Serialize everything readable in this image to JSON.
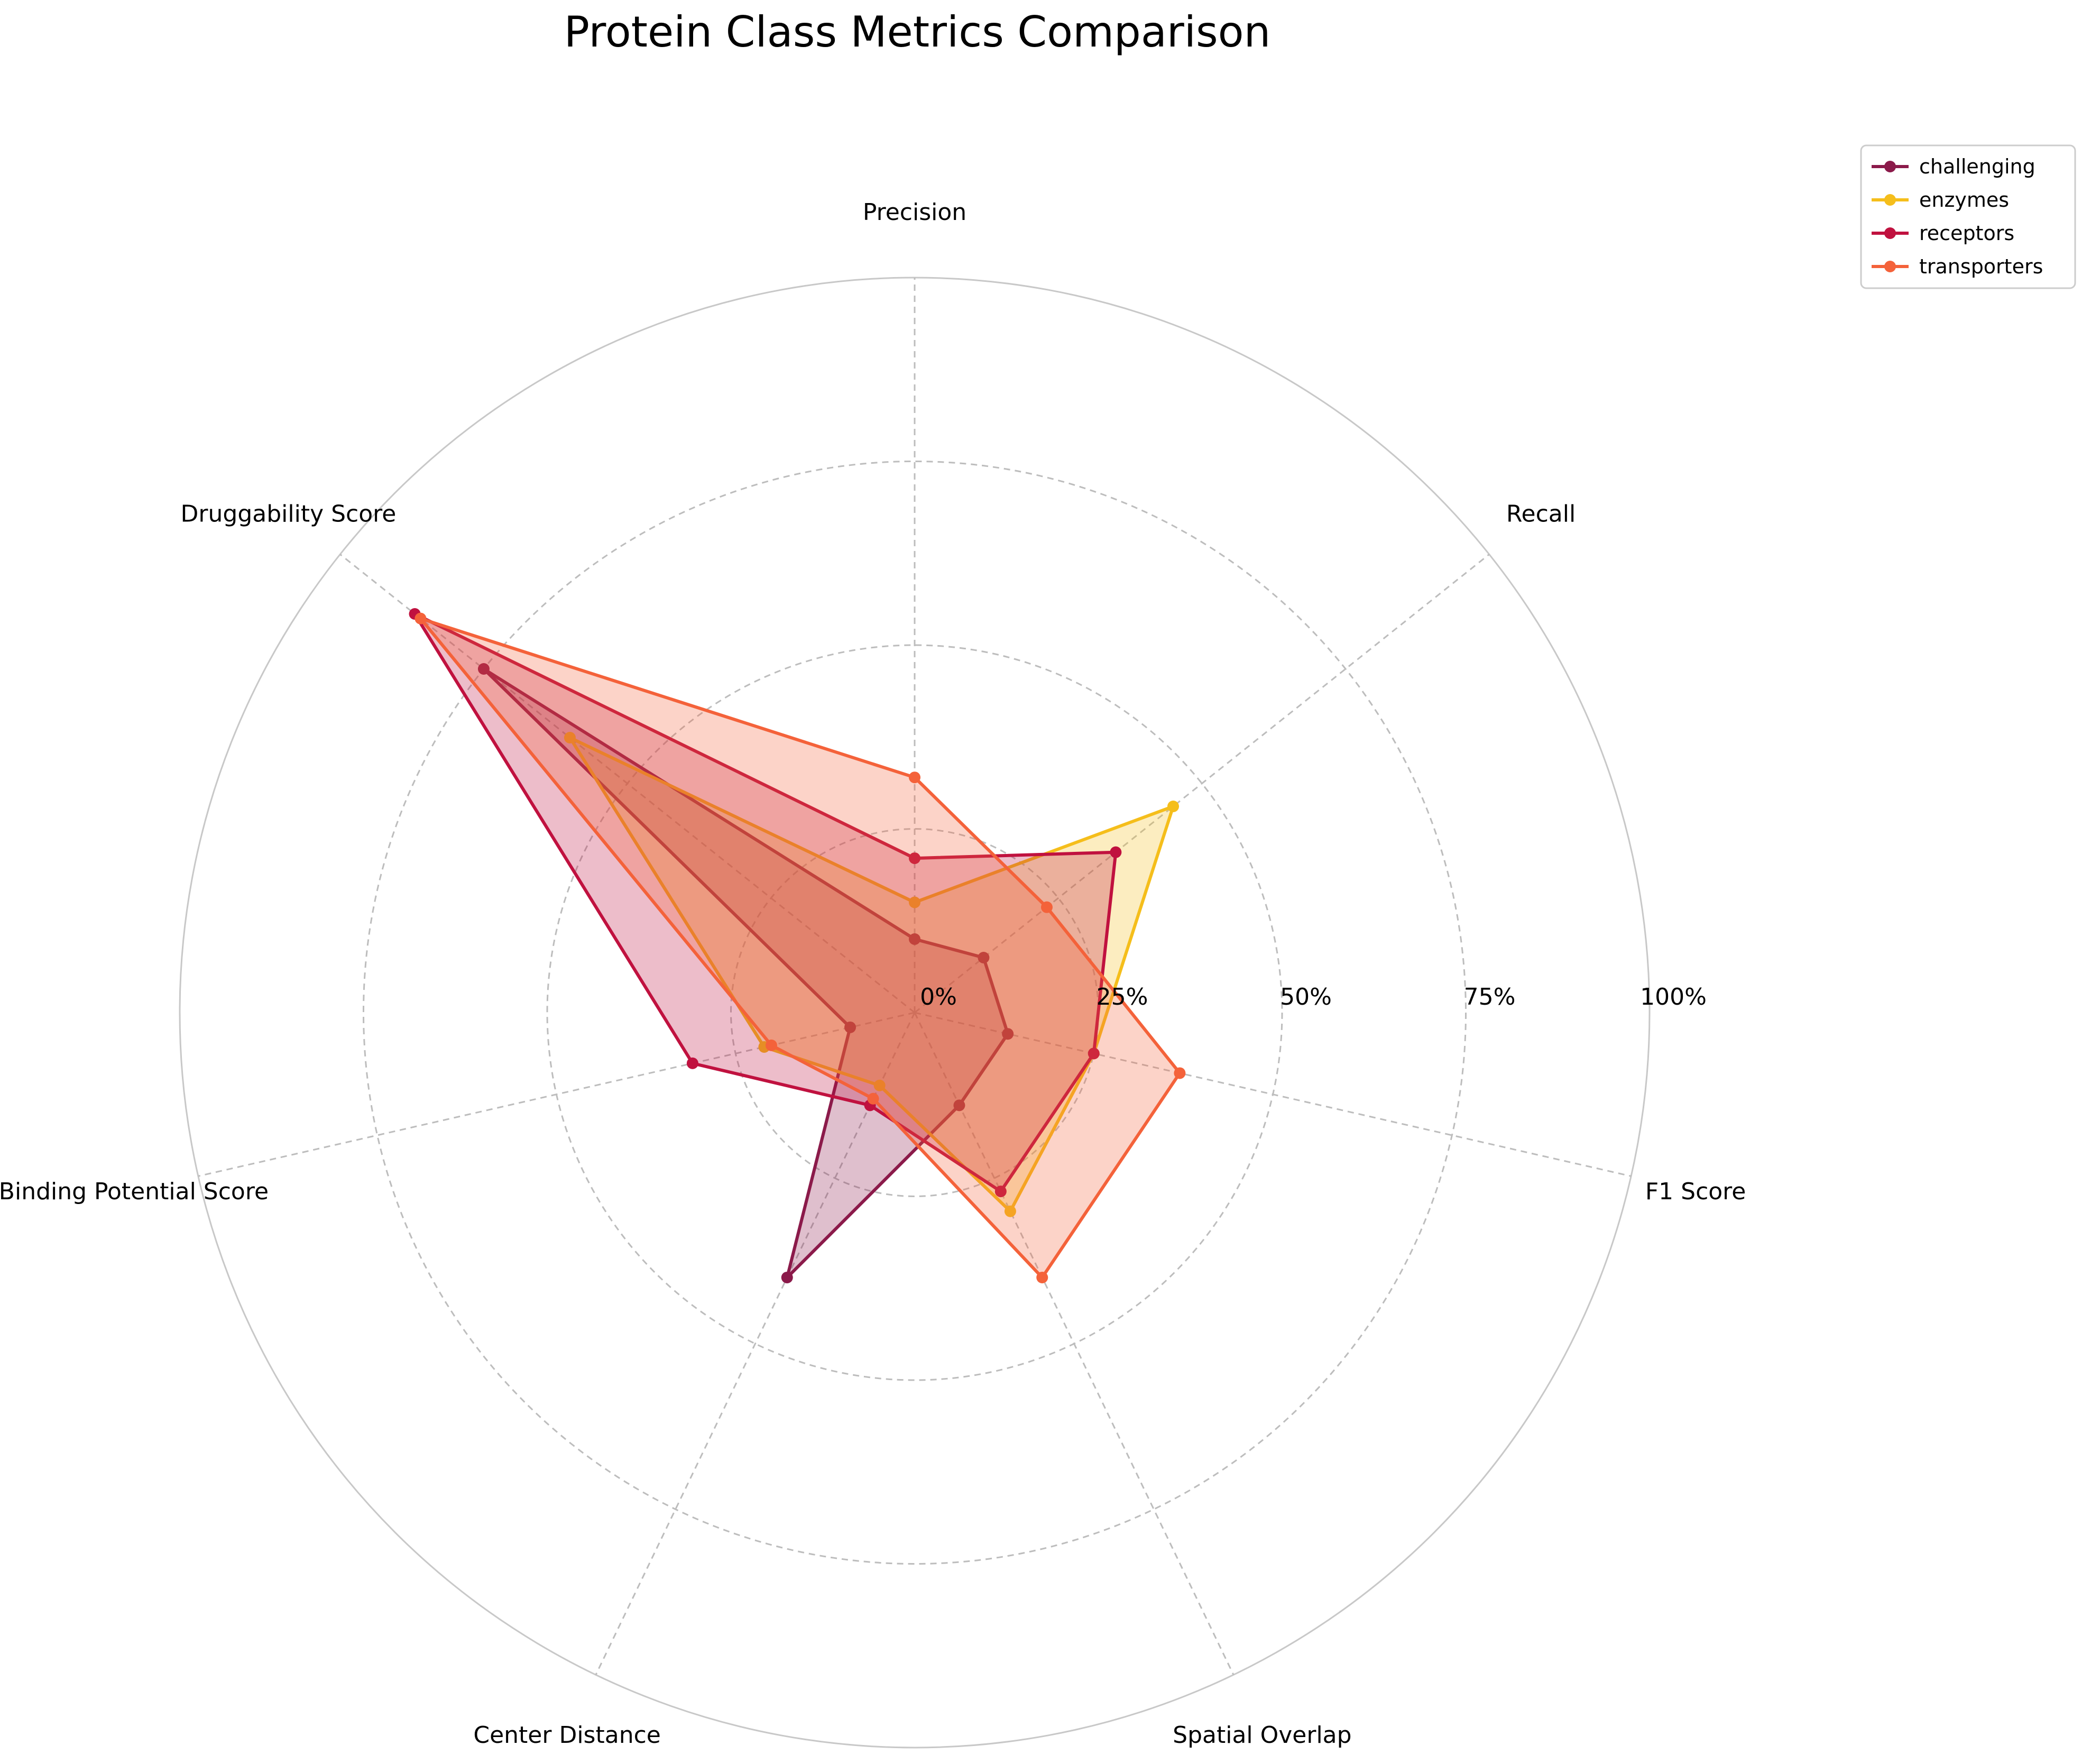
{
  "chart_data": {
    "type": "radar",
    "title": "Protein Class Metrics Comparison",
    "axes": [
      "Precision",
      "Recall",
      "F1 Score",
      "Spatial Overlap",
      "Center Distance",
      "Binding Potential Score",
      "Druggability Score"
    ],
    "radial_ticks": [
      "0%",
      "25%",
      "50%",
      "75%",
      "100%"
    ],
    "rlim": [
      0,
      100
    ],
    "grid": true,
    "legend_position": "top-right, outside plot",
    "series": [
      {
        "name": "challenging",
        "color": "#8B1A4A",
        "values": [
          10,
          12,
          13,
          14,
          40,
          9,
          75
        ]
      },
      {
        "name": "enzymes",
        "color": "#F5BE1B",
        "values": [
          15,
          45,
          25,
          30,
          11,
          21,
          60
        ]
      },
      {
        "name": "receptors",
        "color": "#C0113F",
        "values": [
          21,
          35,
          25,
          27,
          14,
          31,
          87
        ]
      },
      {
        "name": "transporters",
        "color": "#F4623A",
        "values": [
          32,
          23,
          37,
          40,
          13,
          20,
          86
        ]
      }
    ]
  }
}
